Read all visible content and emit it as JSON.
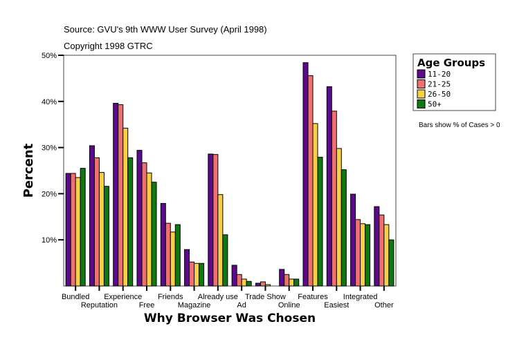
{
  "chart_data": {
    "type": "bar",
    "source": "Source: GVU's 9th WWW User Survey (April 1998)",
    "copyright": "Copyright 1998 GTRC",
    "xlabel": "Why Browser Was Chosen",
    "ylabel": "Percent",
    "ylim": [
      0,
      50
    ],
    "yticks": [
      "10%",
      "20%",
      "30%",
      "40%",
      "50%"
    ],
    "grid": false,
    "legend": {
      "title": "Age Groups",
      "placement": "top-right"
    },
    "note": "Bars show % of Cases > 0",
    "categories": [
      "Bundled",
      "Reputation",
      "Experience",
      "Free",
      "Friends",
      "Magazine",
      "Already use",
      "Ad",
      "Trade Show",
      "Online",
      "Features",
      "Easiest",
      "Integrated",
      "Other"
    ],
    "series": [
      {
        "name": "11-20",
        "color": "#5c0a8c",
        "values": [
          24.4,
          30.4,
          39.6,
          29.4,
          17.9,
          7.9,
          28.6,
          4.5,
          0.6,
          3.6,
          48.4,
          43.2,
          19.9,
          17.2
        ]
      },
      {
        "name": "21-25",
        "color": "#f07070",
        "values": [
          24.4,
          27.8,
          39.3,
          26.7,
          13.6,
          5.2,
          28.5,
          2.5,
          0.9,
          2.5,
          45.6,
          37.9,
          14.4,
          15.4
        ]
      },
      {
        "name": "26-50",
        "color": "#f8d048",
        "values": [
          23.5,
          24.6,
          34.2,
          24.5,
          11.7,
          4.9,
          19.8,
          1.5,
          0.3,
          1.5,
          35.2,
          29.8,
          13.5,
          13.3
        ]
      },
      {
        "name": "50+",
        "color": "#107810",
        "values": [
          25.5,
          21.6,
          27.8,
          22.5,
          13.3,
          4.9,
          11.1,
          1.0,
          0,
          1.5,
          27.9,
          25.2,
          13.3,
          10.0
        ]
      }
    ]
  }
}
